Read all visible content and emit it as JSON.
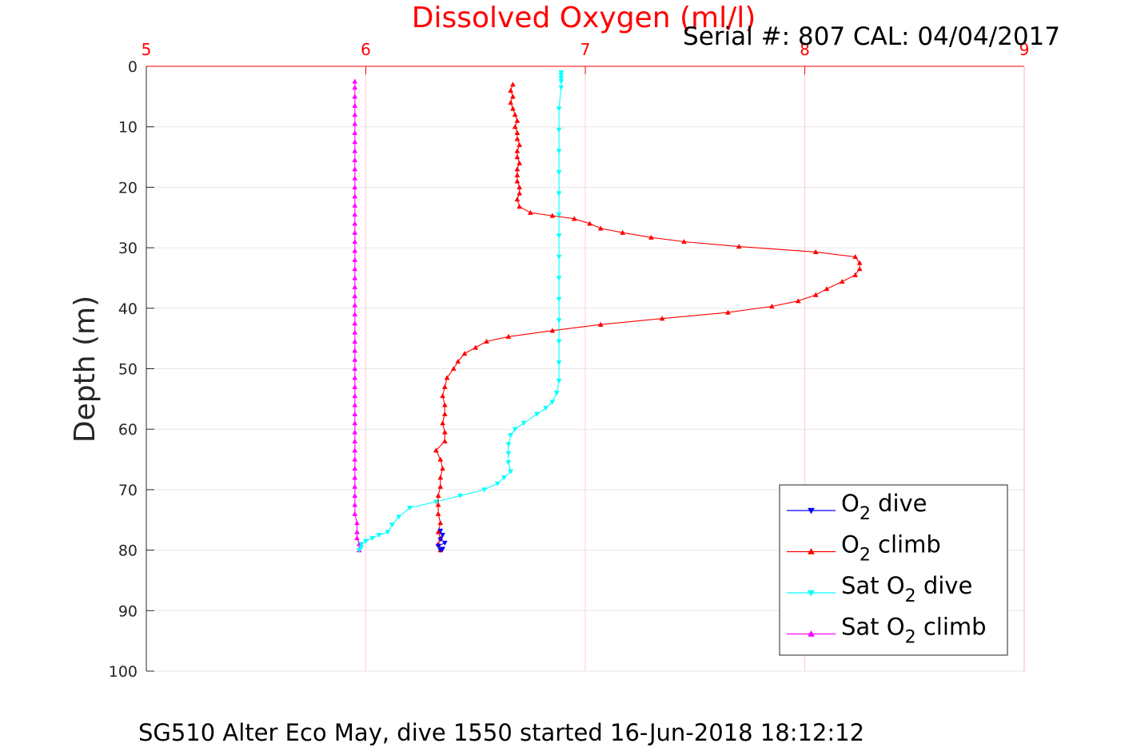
{
  "chart_data": {
    "type": "line",
    "title": "Dissolved Oxygen (ml/l)",
    "subtitle": "Serial #: 807  CAL: 04/04/2017",
    "ylabel": "Depth (m)",
    "xlabel": "",
    "caption": "SG510 Alter Eco May, dive 1550 started 16-Jun-2018 18:12:12",
    "xlim": [
      5,
      9
    ],
    "ylim": [
      0,
      100
    ],
    "y_reversed": true,
    "x_axis_position": "top",
    "x_ticks": [
      "5",
      "6",
      "7",
      "8",
      "9"
    ],
    "y_ticks": [
      "0",
      "10",
      "20",
      "30",
      "40",
      "50",
      "60",
      "70",
      "80",
      "90",
      "100"
    ],
    "grid": true,
    "legend_position": "bottom-right",
    "series": [
      {
        "name_parts": [
          "O",
          "2",
          " dive"
        ],
        "color": "#0000ff",
        "marker": "triangle-down",
        "points": [
          [
            6.34,
            76.8
          ],
          [
            6.35,
            77.5
          ],
          [
            6.34,
            78.2
          ],
          [
            6.36,
            78.8
          ],
          [
            6.33,
            79.3
          ],
          [
            6.35,
            79.8
          ],
          [
            6.34,
            80.0
          ]
        ]
      },
      {
        "name_parts": [
          "O",
          "2",
          " climb"
        ],
        "color": "#ff0000",
        "marker": "triangle-up",
        "points": [
          [
            6.34,
            80.0
          ],
          [
            6.33,
            79.0
          ],
          [
            6.34,
            78.0
          ],
          [
            6.33,
            77.0
          ],
          [
            6.34,
            75.5
          ],
          [
            6.33,
            74.0
          ],
          [
            6.33,
            72.5
          ],
          [
            6.33,
            71.0
          ],
          [
            6.34,
            69.5
          ],
          [
            6.34,
            68.0
          ],
          [
            6.35,
            66.5
          ],
          [
            6.34,
            65.0
          ],
          [
            6.32,
            63.5
          ],
          [
            6.36,
            62.0
          ],
          [
            6.36,
            60.5
          ],
          [
            6.35,
            59.0
          ],
          [
            6.36,
            57.5
          ],
          [
            6.36,
            56.0
          ],
          [
            6.35,
            54.5
          ],
          [
            6.36,
            53.0
          ],
          [
            6.37,
            51.5
          ],
          [
            6.4,
            50.0
          ],
          [
            6.42,
            48.8
          ],
          [
            6.45,
            47.5
          ],
          [
            6.5,
            46.5
          ],
          [
            6.55,
            45.5
          ],
          [
            6.65,
            44.7
          ],
          [
            6.85,
            43.7
          ],
          [
            7.07,
            42.7
          ],
          [
            7.35,
            41.7
          ],
          [
            7.65,
            40.7
          ],
          [
            7.85,
            39.7
          ],
          [
            7.97,
            38.8
          ],
          [
            8.05,
            37.8
          ],
          [
            8.1,
            36.8
          ],
          [
            8.17,
            35.6
          ],
          [
            8.23,
            34.5
          ],
          [
            8.25,
            33.5
          ],
          [
            8.25,
            32.5
          ],
          [
            8.23,
            31.5
          ],
          [
            8.05,
            30.7
          ],
          [
            7.7,
            29.8
          ],
          [
            7.45,
            29.0
          ],
          [
            7.3,
            28.3
          ],
          [
            7.17,
            27.5
          ],
          [
            7.07,
            26.8
          ],
          [
            7.02,
            26.0
          ],
          [
            6.95,
            25.2
          ],
          [
            6.85,
            24.7
          ],
          [
            6.75,
            24.2
          ],
          [
            6.7,
            23.2
          ],
          [
            6.69,
            22.0
          ],
          [
            6.7,
            21.0
          ],
          [
            6.7,
            20.0
          ],
          [
            6.69,
            19.0
          ],
          [
            6.69,
            18.0
          ],
          [
            6.69,
            17.0
          ],
          [
            6.7,
            16.0
          ],
          [
            6.69,
            15.0
          ],
          [
            6.69,
            14.0
          ],
          [
            6.7,
            13.0
          ],
          [
            6.69,
            12.0
          ],
          [
            6.69,
            11.0
          ],
          [
            6.68,
            10.0
          ],
          [
            6.69,
            9.0
          ],
          [
            6.68,
            8.0
          ],
          [
            6.67,
            7.0
          ],
          [
            6.66,
            6.0
          ],
          [
            6.67,
            5.0
          ],
          [
            6.66,
            4.0
          ],
          [
            6.67,
            3.0
          ]
        ]
      },
      {
        "name_parts": [
          "Sat O",
          "2",
          " dive"
        ],
        "color": "#00ffff",
        "marker": "triangle-down",
        "points": [
          [
            6.89,
            1.0
          ],
          [
            6.89,
            1.5
          ],
          [
            6.89,
            2.0
          ],
          [
            6.89,
            2.5
          ],
          [
            6.89,
            3.5
          ],
          [
            6.88,
            7.0
          ],
          [
            6.88,
            10.5
          ],
          [
            6.88,
            14.0
          ],
          [
            6.88,
            17.5
          ],
          [
            6.88,
            21.0
          ],
          [
            6.88,
            24.5
          ],
          [
            6.88,
            28.0
          ],
          [
            6.88,
            31.5
          ],
          [
            6.88,
            35.0
          ],
          [
            6.88,
            38.5
          ],
          [
            6.88,
            42.0
          ],
          [
            6.88,
            45.5
          ],
          [
            6.88,
            49.0
          ],
          [
            6.88,
            52.0
          ],
          [
            6.87,
            54.0
          ],
          [
            6.85,
            55.5
          ],
          [
            6.82,
            56.5
          ],
          [
            6.78,
            57.5
          ],
          [
            6.72,
            59.0
          ],
          [
            6.68,
            60.0
          ],
          [
            6.66,
            61.0
          ],
          [
            6.65,
            62.5
          ],
          [
            6.65,
            64.0
          ],
          [
            6.65,
            65.5
          ],
          [
            6.66,
            67.0
          ],
          [
            6.63,
            68.0
          ],
          [
            6.6,
            69.0
          ],
          [
            6.54,
            70.0
          ],
          [
            6.43,
            71.0
          ],
          [
            6.32,
            72.0
          ],
          [
            6.2,
            73.0
          ],
          [
            6.15,
            74.5
          ],
          [
            6.12,
            75.8
          ],
          [
            6.1,
            77.0
          ],
          [
            6.06,
            77.5
          ],
          [
            6.03,
            78.0
          ],
          [
            6.0,
            78.5
          ],
          [
            5.98,
            79.0
          ],
          [
            5.98,
            79.5
          ],
          [
            5.97,
            80.0
          ]
        ]
      },
      {
        "name_parts": [
          "Sat O",
          "2",
          " climb"
        ],
        "color": "#ff00ff",
        "marker": "triangle-up",
        "points": [
          [
            5.97,
            80.0
          ],
          [
            5.97,
            79.0
          ],
          [
            5.96,
            78.0
          ],
          [
            5.96,
            77.0
          ],
          [
            5.96,
            75.5
          ],
          [
            5.95,
            74.0
          ],
          [
            5.95,
            72.5
          ],
          [
            5.95,
            71.0
          ],
          [
            5.95,
            69.5
          ],
          [
            5.95,
            68.0
          ],
          [
            5.95,
            66.5
          ],
          [
            5.95,
            65.0
          ],
          [
            5.95,
            63.5
          ],
          [
            5.95,
            62.0
          ],
          [
            5.95,
            60.5
          ],
          [
            5.95,
            59.0
          ],
          [
            5.95,
            57.5
          ],
          [
            5.95,
            56.0
          ],
          [
            5.95,
            54.5
          ],
          [
            5.95,
            53.0
          ],
          [
            5.95,
            51.5
          ],
          [
            5.95,
            50.0
          ],
          [
            5.95,
            48.5
          ],
          [
            5.95,
            47.0
          ],
          [
            5.95,
            45.5
          ],
          [
            5.95,
            44.0
          ],
          [
            5.95,
            42.5
          ],
          [
            5.95,
            41.0
          ],
          [
            5.95,
            39.5
          ],
          [
            5.95,
            38.0
          ],
          [
            5.95,
            36.5
          ],
          [
            5.95,
            35.0
          ],
          [
            5.95,
            33.5
          ],
          [
            5.95,
            32.0
          ],
          [
            5.95,
            30.5
          ],
          [
            5.95,
            29.0
          ],
          [
            5.95,
            27.5
          ],
          [
            5.95,
            26.0
          ],
          [
            5.95,
            24.5
          ],
          [
            5.95,
            23.0
          ],
          [
            5.95,
            21.5
          ],
          [
            5.95,
            20.0
          ],
          [
            5.95,
            18.5
          ],
          [
            5.95,
            17.0
          ],
          [
            5.95,
            15.5
          ],
          [
            5.95,
            14.0
          ],
          [
            5.95,
            12.5
          ],
          [
            5.95,
            11.0
          ],
          [
            5.95,
            9.5
          ],
          [
            5.95,
            8.0
          ],
          [
            5.95,
            6.5
          ],
          [
            5.95,
            5.0
          ],
          [
            5.95,
            3.5
          ],
          [
            5.95,
            2.5
          ]
        ]
      }
    ]
  }
}
